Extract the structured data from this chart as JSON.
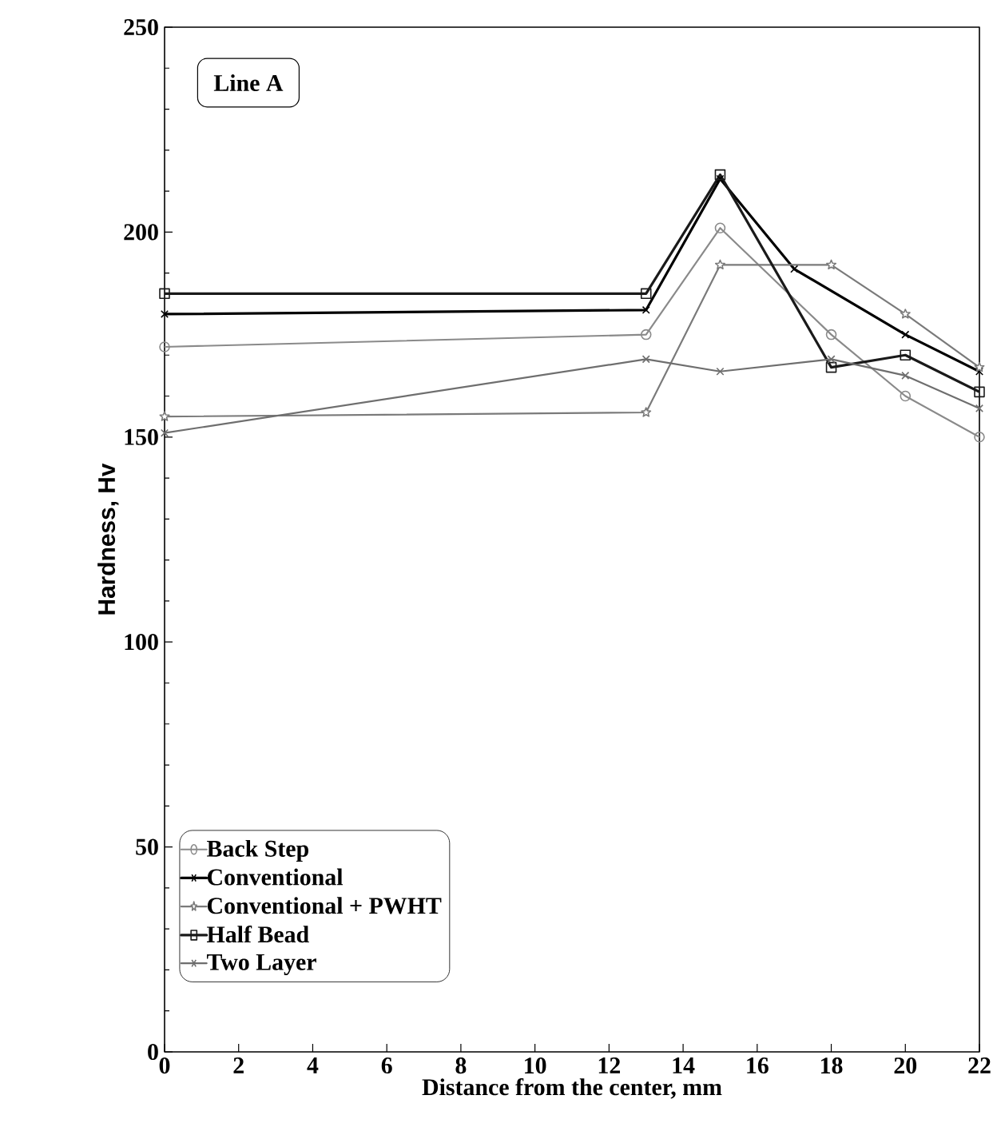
{
  "chart_data": {
    "type": "line",
    "xlabel": "Distance from the center, mm",
    "ylabel": "Hardness, Hv",
    "annotations": [
      "Line A"
    ],
    "xlim": [
      0,
      22
    ],
    "xticks": [
      0,
      2,
      4,
      6,
      8,
      10,
      12,
      14,
      16,
      18,
      20,
      22
    ],
    "ylim": [
      0,
      250
    ],
    "yticks": [
      0,
      50,
      100,
      150,
      200,
      250
    ],
    "grid": false,
    "legend": "bottom left",
    "series": [
      {
        "name": "Back Step",
        "color": "#8a8a8a",
        "marker": "circle",
        "x": [
          0,
          13,
          15,
          18,
          20,
          22
        ],
        "values": [
          172,
          175,
          201,
          175,
          160,
          150
        ]
      },
      {
        "name": "Conventional",
        "color": "#000000",
        "marker": "cross",
        "x": [
          0,
          13,
          15,
          17,
          20,
          22
        ],
        "values": [
          180,
          181,
          213,
          191,
          175,
          166
        ]
      },
      {
        "name": "Conventional + PWHT",
        "color": "#7a7a7a",
        "marker": "star",
        "x": [
          0,
          13,
          15,
          18,
          20,
          22
        ],
        "values": [
          155,
          156,
          192,
          192,
          180,
          167
        ]
      },
      {
        "name": "Half Bead",
        "color": "#1a1a1a",
        "marker": "square",
        "x": [
          0,
          13,
          15,
          18,
          20,
          22
        ],
        "values": [
          185,
          185,
          214,
          167,
          170,
          161
        ]
      },
      {
        "name": "Two Layer",
        "color": "#6e6e6e",
        "marker": "cross",
        "x": [
          0,
          13,
          15,
          18,
          20,
          22
        ],
        "values": [
          151,
          169,
          166,
          169,
          165,
          157
        ]
      }
    ]
  }
}
